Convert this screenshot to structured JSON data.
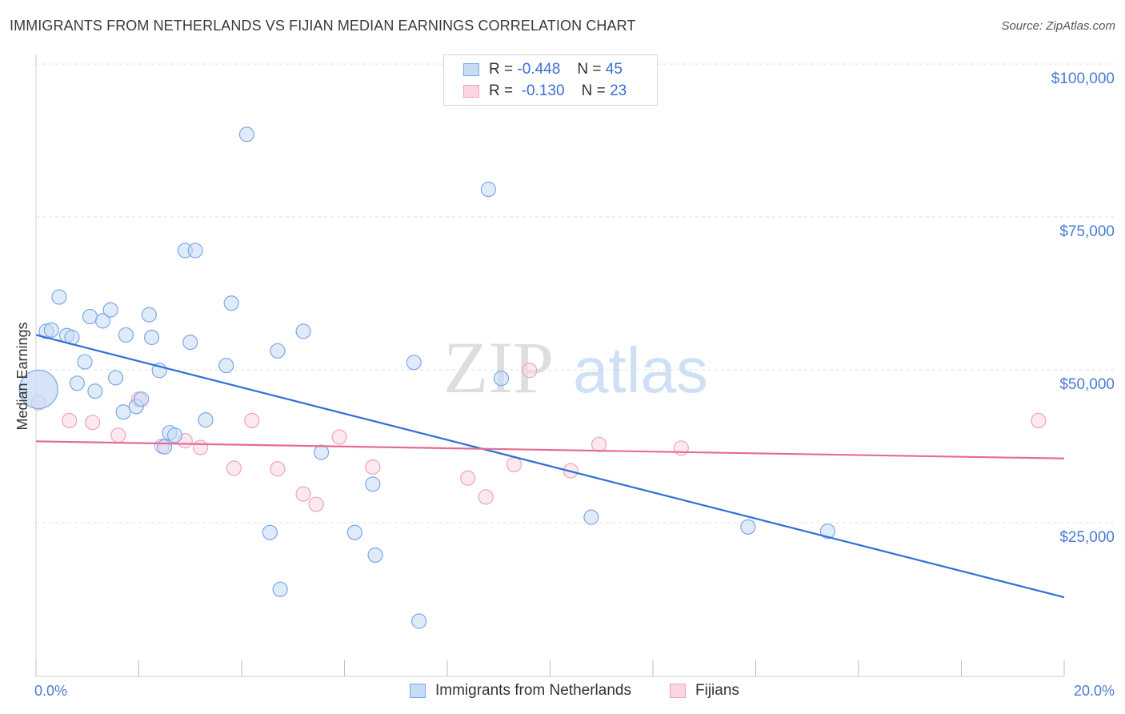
{
  "header": {
    "title": "IMMIGRANTS FROM NETHERLANDS VS FIJIAN MEDIAN EARNINGS CORRELATION CHART",
    "source": "Source: ZipAtlas.com"
  },
  "legend_top": [
    {
      "r_label": "R =",
      "r_value": "-0.448",
      "n_label": "N =",
      "n_value": "45",
      "color": "#a9c8f2"
    },
    {
      "r_label": "R =",
      "r_value": "-0.130",
      "n_label": "N =",
      "n_value": "23",
      "color": "#f6b8cb"
    }
  ],
  "legend_bottom": [
    {
      "label": "Immigrants from Netherlands",
      "color": "#a9c8f2"
    },
    {
      "label": "Fijians",
      "color": "#f6b8cb"
    }
  ],
  "watermark": {
    "zip": "ZIP",
    "atlas": "atlas"
  },
  "chart_data": {
    "type": "scatter",
    "ylabel": "Median Earnings",
    "xlim": [
      0,
      20
    ],
    "ylim": [
      2000,
      104000
    ],
    "x_tick_labels": [
      {
        "x": 0,
        "label": "0.0%"
      },
      {
        "x": 20,
        "label": "20.0%"
      }
    ],
    "y_ticks": [
      {
        "y": 25000,
        "label": "$25,000"
      },
      {
        "y": 50000,
        "label": "$50,000"
      },
      {
        "y": 75000,
        "label": "$75,000"
      },
      {
        "y": 100000,
        "label": "$100,000"
      }
    ],
    "grid": "horizontal dashed",
    "series": [
      {
        "name": "Immigrants from Netherlands",
        "color": "#7aa8e6",
        "fill": "#c7dbf6",
        "trend": {
          "x": [
            0,
            20
          ],
          "y": [
            55700,
            12800
          ],
          "color": "#2f6fd6"
        },
        "points": [
          {
            "x": 0.05,
            "y": 46800,
            "big": true
          },
          {
            "x": 0.2,
            "y": 56300
          },
          {
            "x": 0.3,
            "y": 56500
          },
          {
            "x": 0.45,
            "y": 61900
          },
          {
            "x": 0.6,
            "y": 55600
          },
          {
            "x": 0.7,
            "y": 55300
          },
          {
            "x": 0.8,
            "y": 47800
          },
          {
            "x": 0.95,
            "y": 51300
          },
          {
            "x": 1.05,
            "y": 58700
          },
          {
            "x": 1.15,
            "y": 46500
          },
          {
            "x": 1.3,
            "y": 58000
          },
          {
            "x": 1.45,
            "y": 59800
          },
          {
            "x": 1.55,
            "y": 48700
          },
          {
            "x": 1.7,
            "y": 43100
          },
          {
            "x": 1.75,
            "y": 55700
          },
          {
            "x": 1.95,
            "y": 44000
          },
          {
            "x": 2.05,
            "y": 45200
          },
          {
            "x": 2.2,
            "y": 59000
          },
          {
            "x": 2.25,
            "y": 55300
          },
          {
            "x": 2.4,
            "y": 49900
          },
          {
            "x": 2.5,
            "y": 37400
          },
          {
            "x": 2.6,
            "y": 39700
          },
          {
            "x": 2.7,
            "y": 39300
          },
          {
            "x": 2.9,
            "y": 69500
          },
          {
            "x": 3.0,
            "y": 54500
          },
          {
            "x": 3.1,
            "y": 69500
          },
          {
            "x": 3.3,
            "y": 41800
          },
          {
            "x": 3.7,
            "y": 50700
          },
          {
            "x": 3.8,
            "y": 60900
          },
          {
            "x": 4.1,
            "y": 88500
          },
          {
            "x": 4.55,
            "y": 23400
          },
          {
            "x": 4.7,
            "y": 53100
          },
          {
            "x": 4.75,
            "y": 14100
          },
          {
            "x": 5.2,
            "y": 56300
          },
          {
            "x": 5.55,
            "y": 36500
          },
          {
            "x": 6.2,
            "y": 23400
          },
          {
            "x": 6.55,
            "y": 31300
          },
          {
            "x": 6.6,
            "y": 19700
          },
          {
            "x": 7.35,
            "y": 51200
          },
          {
            "x": 7.45,
            "y": 8900
          },
          {
            "x": 8.8,
            "y": 79500
          },
          {
            "x": 9.05,
            "y": 48600
          },
          {
            "x": 10.8,
            "y": 25900
          },
          {
            "x": 13.85,
            "y": 24300
          },
          {
            "x": 15.4,
            "y": 23600
          }
        ]
      },
      {
        "name": "Fijians",
        "color": "#f0a3bb",
        "fill": "#fad6e1",
        "trend": {
          "x": [
            0,
            20
          ],
          "y": [
            38300,
            35500
          ],
          "color": "#e46c95"
        },
        "points": [
          {
            "x": 0.05,
            "y": 44600
          },
          {
            "x": 0.65,
            "y": 41700
          },
          {
            "x": 1.1,
            "y": 41400
          },
          {
            "x": 1.6,
            "y": 39300
          },
          {
            "x": 2.0,
            "y": 45200
          },
          {
            "x": 2.45,
            "y": 37500
          },
          {
            "x": 2.9,
            "y": 38400
          },
          {
            "x": 3.2,
            "y": 37300
          },
          {
            "x": 3.85,
            "y": 33900
          },
          {
            "x": 4.2,
            "y": 41700
          },
          {
            "x": 4.7,
            "y": 33800
          },
          {
            "x": 5.2,
            "y": 29700
          },
          {
            "x": 5.45,
            "y": 28000
          },
          {
            "x": 5.9,
            "y": 39000
          },
          {
            "x": 6.55,
            "y": 34100
          },
          {
            "x": 8.4,
            "y": 32300
          },
          {
            "x": 8.75,
            "y": 29200
          },
          {
            "x": 9.3,
            "y": 34500
          },
          {
            "x": 9.6,
            "y": 49900
          },
          {
            "x": 10.4,
            "y": 33500
          },
          {
            "x": 10.95,
            "y": 37800
          },
          {
            "x": 12.55,
            "y": 37200
          },
          {
            "x": 19.5,
            "y": 41700
          }
        ]
      }
    ]
  }
}
